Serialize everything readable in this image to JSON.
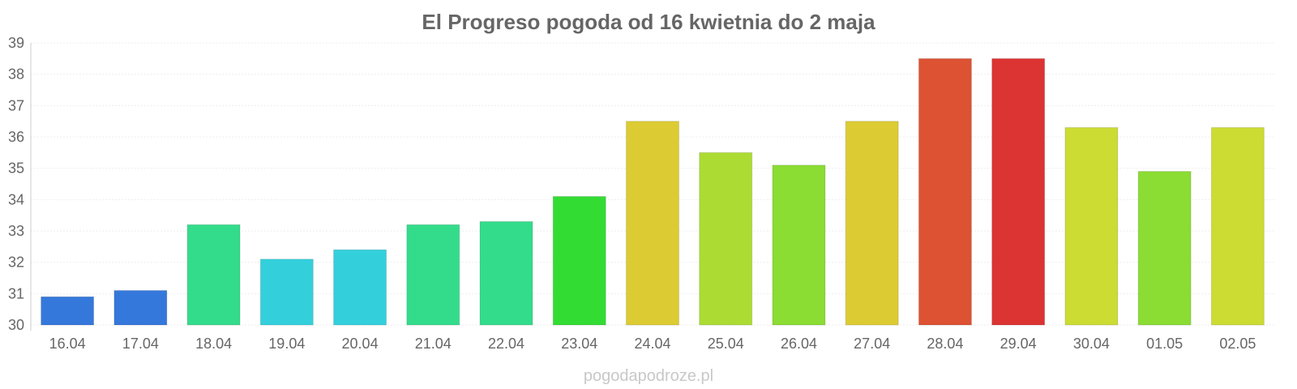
{
  "chart_data": {
    "type": "bar",
    "title": "El Progreso pogoda od 16 kwietnia do 2 maja",
    "xlabel": "",
    "ylabel": "",
    "ylim": [
      30,
      39
    ],
    "yticks": [
      30,
      31,
      32,
      33,
      34,
      35,
      36,
      37,
      38,
      39
    ],
    "categories": [
      "16.04",
      "17.04",
      "18.04",
      "19.04",
      "20.04",
      "21.04",
      "22.04",
      "23.04",
      "24.04",
      "25.04",
      "26.04",
      "27.04",
      "28.04",
      "29.04",
      "30.04",
      "01.05",
      "02.05"
    ],
    "values": [
      30.9,
      31.1,
      33.2,
      32.1,
      32.4,
      33.2,
      33.3,
      34.1,
      36.5,
      35.5,
      35.1,
      36.5,
      38.5,
      38.5,
      36.3,
      34.9,
      36.3
    ],
    "colors": [
      "#3578dc",
      "#3578dc",
      "#33dc8b",
      "#33d0dc",
      "#33d0dc",
      "#33dc8b",
      "#33dc8b",
      "#33dc33",
      "#dccb33",
      "#acdc33",
      "#8bdc33",
      "#dccb33",
      "#dc5233",
      "#dc3333",
      "#ccdc33",
      "#8bdc33",
      "#ccdc33"
    ],
    "grid": true,
    "legend": "none"
  },
  "watermark": "pogodapodroze.pl"
}
